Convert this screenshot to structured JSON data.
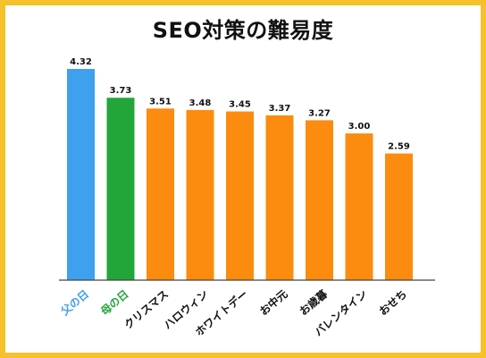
{
  "chart_data": {
    "type": "bar",
    "title": "SEO対策の難易度",
    "categories": [
      "父の日",
      "母の日",
      "クリスマス",
      "ハロウィン",
      "ホワイトデー",
      "お中元",
      "お歳暮",
      "バレンタイン",
      "おせち"
    ],
    "values": [
      4.32,
      3.73,
      3.51,
      3.48,
      3.45,
      3.37,
      3.27,
      3.0,
      2.59
    ],
    "value_labels": [
      "4.32",
      "3.73",
      "3.51",
      "3.48",
      "3.45",
      "3.37",
      "3.27",
      "3.00",
      "2.59"
    ],
    "ylim": [
      0,
      4.32
    ],
    "grid": false,
    "legend": "none",
    "bar_colors": [
      "#3fa0ee",
      "#22a63a",
      "#fb8c0f",
      "#fb8c0f",
      "#fb8c0f",
      "#fb8c0f",
      "#fb8c0f",
      "#fb8c0f",
      "#fb8c0f"
    ],
    "label_colors": [
      "#3fa0ee",
      "#22a63a",
      "#111111",
      "#111111",
      "#111111",
      "#111111",
      "#111111",
      "#111111",
      "#111111"
    ]
  },
  "colors": {
    "frame": "#f6c12a",
    "axis": "#444444"
  }
}
